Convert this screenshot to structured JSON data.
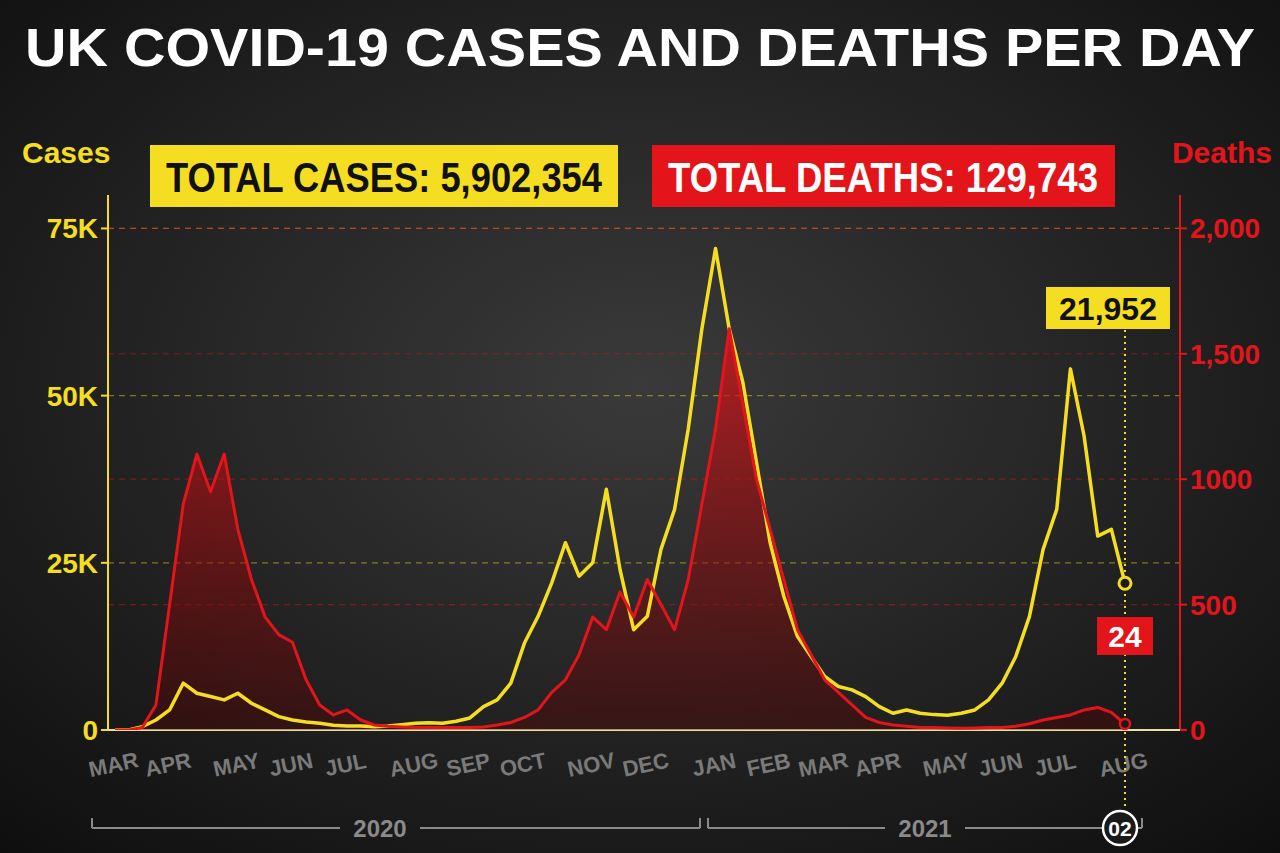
{
  "chart_data": {
    "type": "line",
    "title": "UK COVID-19 CASES AND DEATHS PER DAY",
    "annotations": [
      "TOTAL CASES: 5,902,354",
      "TOTAL DEATHS: 129,743",
      "2020",
      "2021",
      "02"
    ],
    "categories": [
      "MAR",
      null,
      null,
      null,
      "APR",
      null,
      null,
      null,
      null,
      "MAY",
      null,
      null,
      null,
      "JUN",
      null,
      null,
      null,
      "JUL",
      null,
      null,
      null,
      null,
      "AUG",
      null,
      null,
      null,
      "SEP",
      null,
      null,
      null,
      "OCT",
      null,
      null,
      null,
      null,
      "NOV",
      null,
      null,
      null,
      "DEC",
      null,
      null,
      null,
      null,
      "JAN",
      null,
      null,
      null,
      "FEB",
      null,
      null,
      null,
      "MAR",
      null,
      null,
      null,
      "APR",
      null,
      null,
      null,
      null,
      "MAY",
      null,
      null,
      null,
      "JUN",
      null,
      null,
      null,
      "JUL",
      null,
      null,
      null,
      null,
      "AUG"
    ],
    "series": [
      {
        "name": "Cases",
        "color": "#f5de22",
        "type": "line",
        "values": [
          0,
          0,
          500,
          1500,
          3000,
          7000,
          5500,
          5000,
          4500,
          5500,
          4000,
          3000,
          2000,
          1500,
          1200,
          1000,
          700,
          600,
          600,
          500,
          600,
          800,
          1000,
          1100,
          1000,
          1300,
          1800,
          3500,
          4500,
          7000,
          13000,
          17000,
          22000,
          28000,
          23000,
          25000,
          36000,
          24000,
          15000,
          17000,
          27000,
          33000,
          45000,
          60000,
          72000,
          60000,
          52000,
          40000,
          28000,
          20000,
          14000,
          11000,
          8000,
          6500,
          6000,
          5000,
          3500,
          2500,
          3000,
          2500,
          2300,
          2200,
          2500,
          3000,
          4500,
          7000,
          11000,
          17000,
          27000,
          33000,
          54000,
          44000,
          29000,
          30000,
          21952
        ],
        "value_labels": [
          null,
          null,
          null,
          null,
          null,
          null,
          null,
          null,
          null,
          null,
          null,
          null,
          null,
          null,
          null,
          null,
          null,
          null,
          null,
          null,
          null,
          null,
          null,
          null,
          null,
          null,
          null,
          null,
          null,
          null,
          null,
          null,
          null,
          null,
          null,
          null,
          null,
          null,
          null,
          null,
          null,
          null,
          null,
          null,
          null,
          null,
          null,
          null,
          null,
          null,
          null,
          null,
          null,
          null,
          null,
          null,
          null,
          null,
          null,
          null,
          null,
          null,
          null,
          null,
          null,
          null,
          null,
          null,
          null,
          null,
          null,
          null,
          null,
          null,
          "21,952"
        ]
      },
      {
        "name": "Deaths",
        "color": "#e3151a",
        "type": "area",
        "axis": "y2",
        "values": [
          0,
          0,
          10,
          100,
          500,
          900,
          1100,
          950,
          1100,
          800,
          600,
          450,
          380,
          350,
          200,
          100,
          60,
          80,
          40,
          20,
          15,
          12,
          10,
          10,
          10,
          10,
          10,
          12,
          20,
          30,
          50,
          80,
          150,
          200,
          300,
          450,
          400,
          550,
          450,
          600,
          500,
          400,
          600,
          900,
          1200,
          1600,
          1300,
          1000,
          800,
          600,
          400,
          300,
          200,
          150,
          100,
          50,
          30,
          20,
          15,
          10,
          10,
          8,
          7,
          8,
          10,
          10,
          15,
          25,
          40,
          50,
          60,
          80,
          90,
          70,
          24
        ],
        "value_labels": [
          null,
          null,
          null,
          null,
          null,
          null,
          null,
          null,
          null,
          null,
          null,
          null,
          null,
          null,
          null,
          null,
          null,
          null,
          null,
          null,
          null,
          null,
          null,
          null,
          null,
          null,
          null,
          null,
          null,
          null,
          null,
          null,
          null,
          null,
          null,
          null,
          null,
          null,
          null,
          null,
          null,
          null,
          null,
          null,
          null,
          null,
          null,
          null,
          null,
          null,
          null,
          null,
          null,
          null,
          null,
          null,
          null,
          null,
          null,
          null,
          null,
          null,
          null,
          null,
          null,
          null,
          null,
          null,
          null,
          null,
          null,
          null,
          null,
          null,
          "24"
        ]
      }
    ],
    "ylim": [
      0,
      80000
    ],
    "yticks": [
      0,
      {
        "value": 25000,
        "label": "25K"
      },
      {
        "value": 50000,
        "label": "50K"
      },
      {
        "value": 75000,
        "label": "75K"
      }
    ],
    "y2lim": [
      0,
      2133
    ],
    "y2ticks": [
      0,
      500,
      1000,
      {
        "value": 1500,
        "label": "1,500"
      },
      {
        "value": 2000,
        "label": "2,000"
      }
    ],
    "grid": true
  }
}
